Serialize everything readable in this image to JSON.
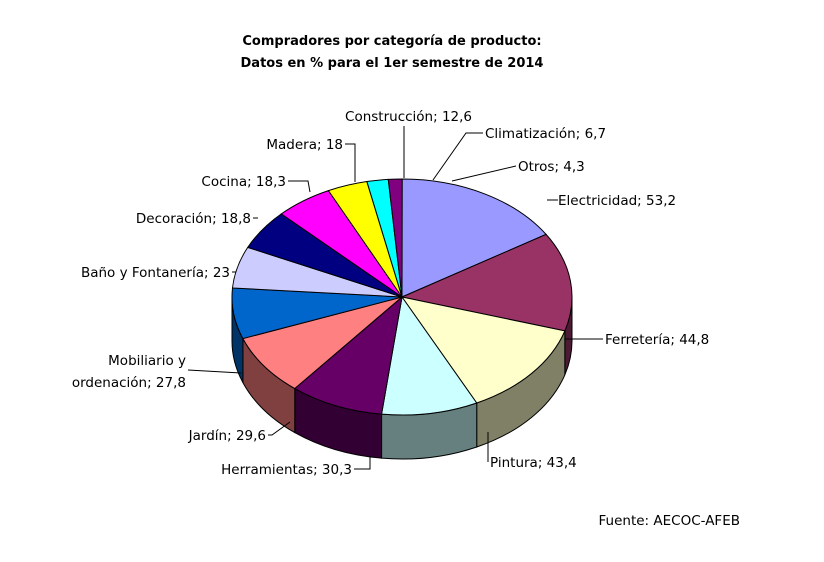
{
  "chart_data": {
    "type": "pie",
    "title": "Compradores por categoría de producto:",
    "subtitle": "Datos en % para el 1er semestre de 2014",
    "source": "Fuente: AECOC-AFEB",
    "slices": [
      {
        "label": "Electricidad",
        "text": "Electricidad; 53,2",
        "value": 53.2,
        "color": "#9999ff",
        "side": "#4d4d80"
      },
      {
        "label": "Ferretería",
        "text": "Ferretería; 44,8",
        "value": 44.8,
        "color": "#993366",
        "side": "#4d1a33"
      },
      {
        "label": "Pintura",
        "text": "Pintura; 43,4",
        "value": 43.4,
        "color": "#ffffcc",
        "side": "#808066"
      },
      {
        "label": "Herramientas",
        "text": "Herramientas; 30,3",
        "value": 30.3,
        "color": "#ccffff",
        "side": "#668080"
      },
      {
        "label": "Jardín",
        "text": "Jardín; 29,6",
        "value": 29.6,
        "color": "#660066",
        "side": "#330033"
      },
      {
        "label": "Mobiliario y ordenación",
        "text": [
          "Mobiliario y",
          "ordenación; 27,8"
        ],
        "value": 27.8,
        "color": "#ff8080",
        "side": "#804040"
      },
      {
        "label": "Baño y Fontanería",
        "text": "Baño y Fontanería; 23",
        "value": 23,
        "color": "#0066cc",
        "side": "#003366"
      },
      {
        "label": "Decoración",
        "text": "Decoración; 18,8",
        "value": 18.8,
        "color": "#ccccff",
        "side": "#666680"
      },
      {
        "label": "Cocina",
        "text": "Cocina; 18,3",
        "value": 18.3,
        "color": "#000080",
        "side": "#000040"
      },
      {
        "label": "Madera",
        "text": "Madera; 18",
        "value": 18,
        "color": "#ff00ff",
        "side": "#800080"
      },
      {
        "label": "Construcción",
        "text": "Construcción; 12,6",
        "value": 12.6,
        "color": "#ffff00",
        "side": "#808000"
      },
      {
        "label": "Climatización",
        "text": "Climatización; 6,7",
        "value": 6.7,
        "color": "#00ffff",
        "side": "#008080"
      },
      {
        "label": "Otros",
        "text": "Otros; 4,3",
        "value": 4.3,
        "color": "#800080",
        "side": "#400040"
      }
    ]
  }
}
